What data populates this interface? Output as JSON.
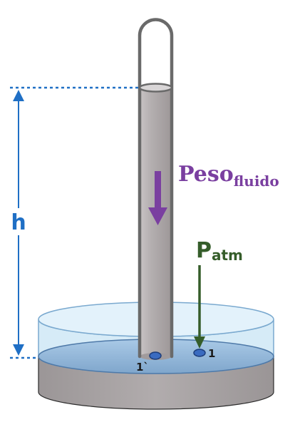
{
  "labels": {
    "height": "h",
    "weight_main": "Peso",
    "weight_sub": "fluido",
    "patm_main": "P",
    "patm_sub": "atm",
    "point_inside": "1`",
    "point_outside": "1"
  },
  "colors": {
    "height_annotation": "#1f6fc5",
    "weight_arrow": "#7a3fa0",
    "patm_arrow": "#355d2a",
    "fluid": "#b0aaab",
    "tube_outline": "#6a6a6a",
    "water_surface": "#8fb4d6",
    "dish_glass": "#d8ecf8",
    "dish_base": "#a9a4a5",
    "point_marker": "#3a6bc0"
  },
  "icons": {
    "weight_arrow": "arrow-down-icon",
    "patm_arrow": "arrow-down-icon",
    "height_arrow": "double-headed-arrow-icon"
  }
}
